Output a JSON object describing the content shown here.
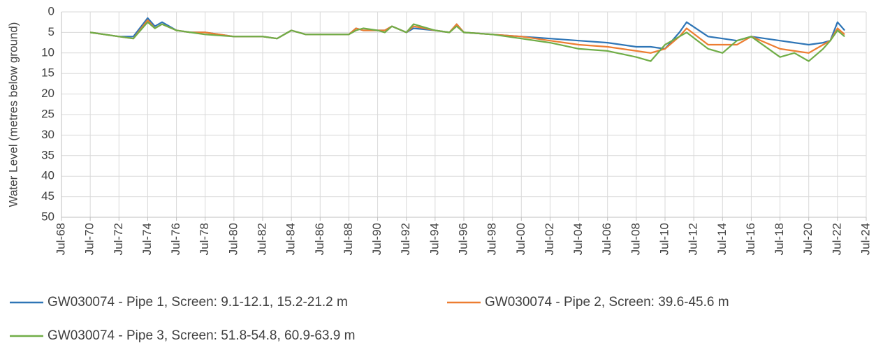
{
  "chart_data": {
    "type": "line",
    "y_label": "Water Level (metres below ground)",
    "y_inverted": true,
    "grid": true,
    "legend": "bottom",
    "x": [
      "1970-07",
      "1971-07",
      "1972-07",
      "1973-07",
      "1974-07",
      "1975-01",
      "1975-07",
      "1976-07",
      "1977-07",
      "1978-07",
      "1980-07",
      "1982-07",
      "1983-07",
      "1984-07",
      "1985-07",
      "1988-07",
      "1989-01",
      "1989-07",
      "1990-07",
      "1991-01",
      "1991-07",
      "1992-07",
      "1993-01",
      "1994-07",
      "1995-07",
      "1996-01",
      "1996-07",
      "1998-07",
      "2000-07",
      "2002-07",
      "2004-07",
      "2006-07",
      "2008-07",
      "2009-07",
      "2010-07",
      "2011-07",
      "2012-01",
      "2013-07",
      "2014-07",
      "2015-07",
      "2016-07",
      "2018-07",
      "2019-07",
      "2020-07",
      "2021-07",
      "2022-01",
      "2022-07",
      "2023-01"
    ],
    "series": [
      {
        "name": "GW030074 - Pipe 1, Screen: 9.1-12.1, 15.2-21.2 m",
        "color": "#2e75b6",
        "values": [
          5,
          5.5,
          6,
          6,
          1.5,
          3.5,
          2.5,
          4.5,
          5,
          5,
          6,
          6,
          6.5,
          4.5,
          5.5,
          5.5,
          4,
          4.5,
          4.5,
          4.5,
          3.5,
          5,
          4,
          4.5,
          5,
          3,
          5,
          5.5,
          6,
          6.5,
          7,
          7.5,
          8.5,
          8.5,
          9,
          5,
          2.5,
          6,
          6.5,
          7,
          6,
          7,
          7.5,
          8,
          7.5,
          7,
          2.5,
          4.5
        ]
      },
      {
        "name": "GW030074 - Pipe 2, Screen: 39.6-45.6 m",
        "color": "#ed7d31",
        "values": [
          5,
          5.5,
          6,
          6.5,
          2,
          4,
          3,
          4.5,
          5,
          5,
          6,
          6,
          6.5,
          4.5,
          5.5,
          5.5,
          4,
          4.5,
          4.5,
          4.5,
          3.5,
          5,
          3.5,
          4.5,
          5,
          3,
          5,
          5.5,
          6,
          7,
          8,
          8.5,
          9.5,
          10,
          9,
          6,
          4,
          8,
          8,
          8,
          6,
          9,
          9.5,
          10,
          8,
          7,
          4,
          5.5
        ]
      },
      {
        "name": "GW030074 - Pipe 3, Screen: 51.8-54.8, 60.9-63.9 m",
        "color": "#70ad47",
        "values": [
          5,
          5.5,
          6,
          6.5,
          2.5,
          4,
          3,
          4.5,
          5,
          5.5,
          6,
          6,
          6.5,
          4.5,
          5.5,
          5.5,
          4.5,
          4,
          4.5,
          5,
          3.5,
          5,
          3,
          4.5,
          5,
          3.5,
          5,
          5.5,
          6.5,
          7.5,
          9,
          9.5,
          11,
          12,
          8,
          6,
          5,
          9,
          10,
          7,
          6,
          11,
          10,
          12,
          9,
          7,
          4.5,
          6
        ]
      }
    ],
    "xlim": [
      "1968-07",
      "2024-07"
    ],
    "xticks": [
      {
        "value": "1968-07",
        "label": "Jul-68"
      },
      {
        "value": "1970-07",
        "label": "Jul-70"
      },
      {
        "value": "1972-07",
        "label": "Jul-72"
      },
      {
        "value": "1974-07",
        "label": "Jul-74"
      },
      {
        "value": "1976-07",
        "label": "Jul-76"
      },
      {
        "value": "1978-07",
        "label": "Jul-78"
      },
      {
        "value": "1980-07",
        "label": "Jul-80"
      },
      {
        "value": "1982-07",
        "label": "Jul-82"
      },
      {
        "value": "1984-07",
        "label": "Jul-84"
      },
      {
        "value": "1986-07",
        "label": "Jul-86"
      },
      {
        "value": "1988-07",
        "label": "Jul-88"
      },
      {
        "value": "1990-07",
        "label": "Jul-90"
      },
      {
        "value": "1992-07",
        "label": "Jul-92"
      },
      {
        "value": "1994-07",
        "label": "Jul-94"
      },
      {
        "value": "1996-07",
        "label": "Jul-96"
      },
      {
        "value": "1998-07",
        "label": "Jul-98"
      },
      {
        "value": "2000-07",
        "label": "Jul-00"
      },
      {
        "value": "2002-07",
        "label": "Jul-02"
      },
      {
        "value": "2004-07",
        "label": "Jul-04"
      },
      {
        "value": "2006-07",
        "label": "Jul-06"
      },
      {
        "value": "2008-07",
        "label": "Jul-08"
      },
      {
        "value": "2010-07",
        "label": "Jul-10"
      },
      {
        "value": "2012-07",
        "label": "Jul-12"
      },
      {
        "value": "2014-07",
        "label": "Jul-14"
      },
      {
        "value": "2016-07",
        "label": "Jul-16"
      },
      {
        "value": "2018-07",
        "label": "Jul-18"
      },
      {
        "value": "2020-07",
        "label": "Jul-20"
      },
      {
        "value": "2022-07",
        "label": "Jul-22"
      },
      {
        "value": "2024-07",
        "label": "Jul-24"
      }
    ],
    "ylim": [
      0,
      50
    ],
    "yticks": [
      0,
      5,
      10,
      15,
      20,
      25,
      30,
      35,
      40,
      45,
      50
    ]
  }
}
